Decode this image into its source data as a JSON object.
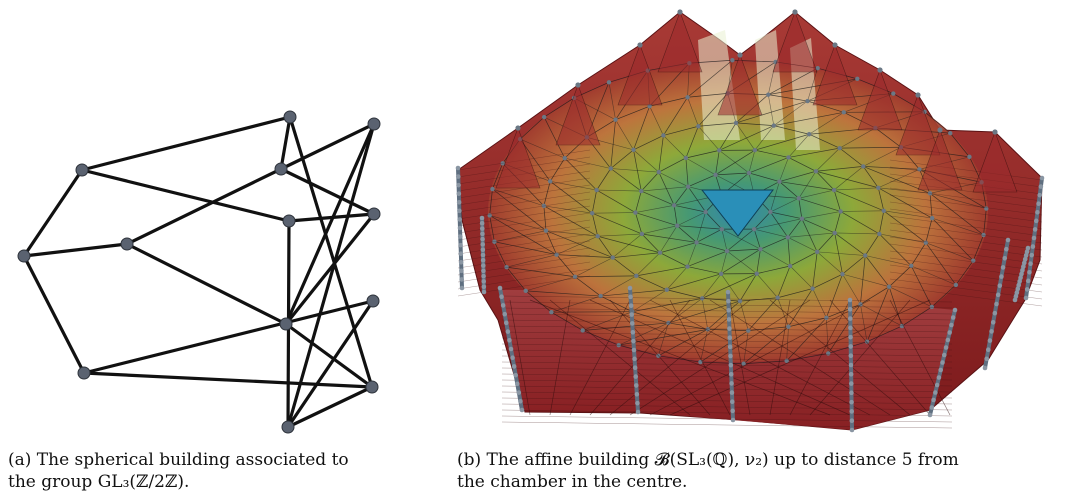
{
  "figure_a": {
    "edge_color": "#111111",
    "node_color": "#5a6270",
    "caption_lines": [
      "(a) The spherical building associated to",
      "the group GL₃(ℤ/2ℤ)."
    ]
  },
  "figure_b": {
    "palette": {
      "outer": "#8e1f22",
      "mid": "#b96a3b",
      "inner": "#7fa832",
      "centre": "#2a8fb8",
      "pole": "#5f6f80"
    },
    "caption_lines": [
      "(b) The affine building 𝓑(SL₃(ℚ), ν₂) up to distance 5 from",
      "the chamber in the centre."
    ]
  }
}
